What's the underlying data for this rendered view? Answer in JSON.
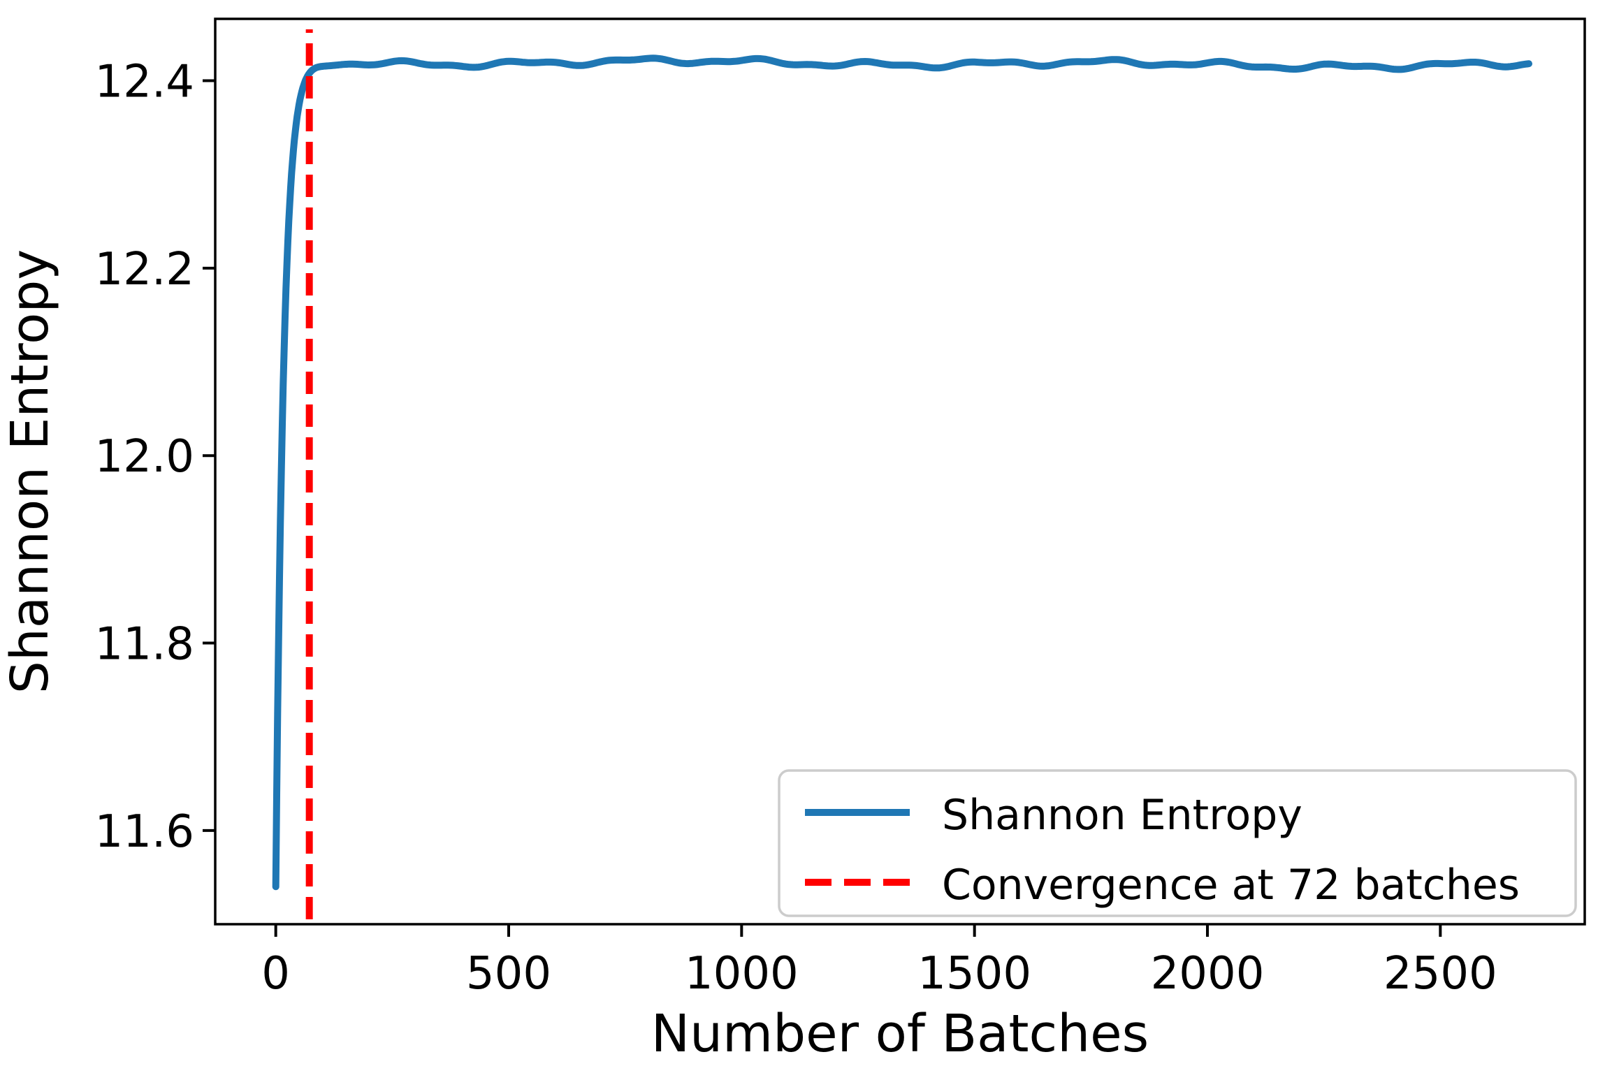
{
  "figure": {
    "background": "#ffffff",
    "spine_color": "#000000",
    "text_color": "#000000"
  },
  "chart_data": {
    "type": "line",
    "title": "",
    "xlabel": "Number of Batches",
    "ylabel": "Shannon Entropy",
    "xlim": [
      -130,
      2810
    ],
    "ylim": [
      11.5,
      12.466
    ],
    "xticks": [
      0,
      500,
      1000,
      1500,
      2000,
      2500
    ],
    "yticks": [
      11.6,
      11.8,
      12.0,
      12.2,
      12.4
    ],
    "grid": false,
    "legend": {
      "position": "lower right",
      "frame": true,
      "edge_color": "#cccccc",
      "fill_color": "#ffffff"
    },
    "series": [
      {
        "name": "Shannon Entropy",
        "kind": "line",
        "color": "#1f77b4",
        "line_style": "solid",
        "line_width": 10,
        "model": {
          "start_value": 11.54,
          "plateau_value": 12.418,
          "rise_tau_batches": 17,
          "x_start": 0,
          "x_end": 2690,
          "noise_amplitude": 0.005
        },
        "key_points": [
          [
            0,
            11.54
          ],
          [
            10,
            11.93
          ],
          [
            20,
            12.15
          ],
          [
            30,
            12.27
          ],
          [
            40,
            12.33
          ],
          [
            50,
            12.37
          ],
          [
            60,
            12.39
          ],
          [
            72,
            12.41
          ],
          [
            100,
            12.42
          ],
          [
            500,
            12.42
          ],
          [
            1000,
            12.42
          ],
          [
            1500,
            12.42
          ],
          [
            2000,
            12.42
          ],
          [
            2500,
            12.42
          ],
          [
            2690,
            12.42
          ]
        ]
      },
      {
        "name": "Convergence at 72 batches",
        "kind": "vline",
        "color": "#ff0000",
        "line_style": "dashed",
        "line_width": 10,
        "dash_pattern": [
          32,
          15
        ],
        "x": 72
      }
    ]
  }
}
